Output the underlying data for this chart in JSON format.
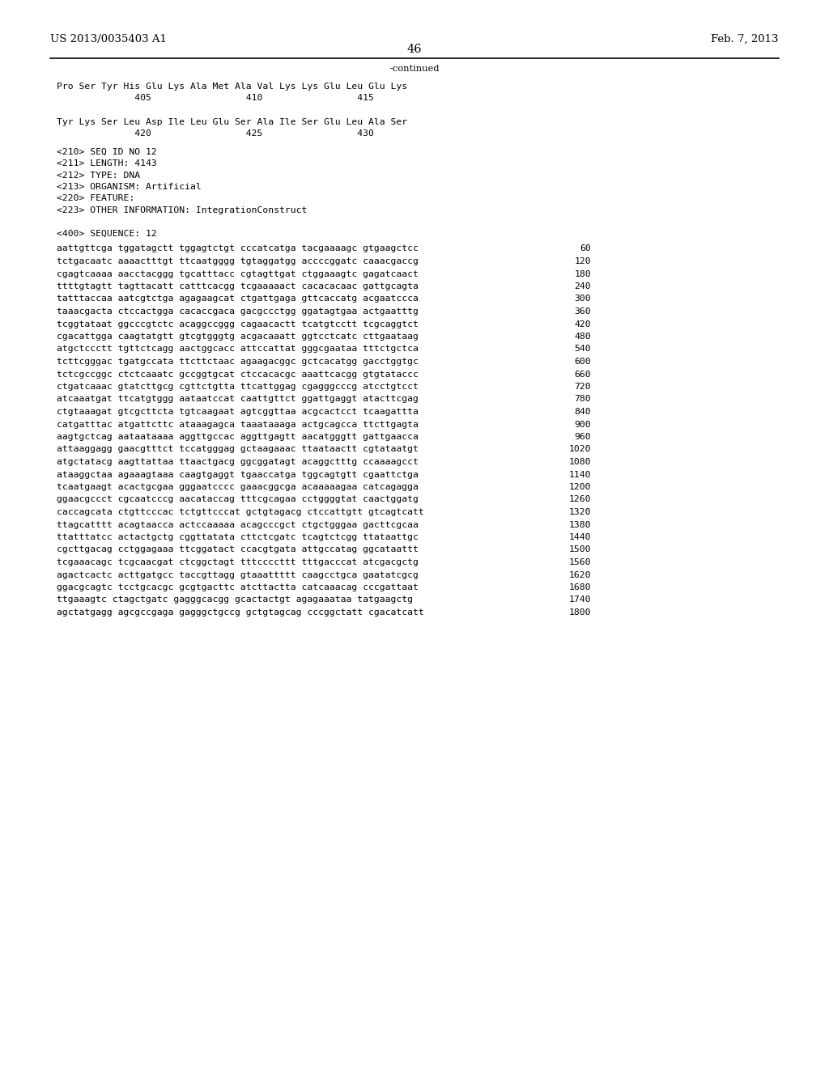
{
  "header_left": "US 2013/0035403 A1",
  "header_right": "Feb. 7, 2013",
  "page_number": "46",
  "continued_text": "-continued",
  "background_color": "#ffffff",
  "text_color": "#000000",
  "font_size_header": 9.5,
  "font_size_body": 8.2,
  "font_size_page": 10.5,
  "protein_lines": [
    "Pro Ser Tyr His Glu Lys Ala Met Ala Val Lys Lys Glu Leu Glu Lys",
    "              405                 410                 415",
    "",
    "Tyr Lys Ser Leu Asp Ile Leu Glu Ser Ala Ile Ser Glu Leu Ala Ser",
    "              420                 425                 430"
  ],
  "meta_lines": [
    "<210> SEQ ID NO 12",
    "<211> LENGTH: 4143",
    "<212> TYPE: DNA",
    "<213> ORGANISM: Artificial",
    "<220> FEATURE:",
    "<223> OTHER INFORMATION: IntegrationConstruct",
    "",
    "<400> SEQUENCE: 12"
  ],
  "sequence_lines": [
    [
      "aattgttcga tggatagctt tggagtctgt cccatcatga tacgaaaagc gtgaagctcc",
      "60"
    ],
    [
      "tctgacaatc aaaactttgt ttcaatgggg tgtaggatgg accccggatc caaacgaccg",
      "120"
    ],
    [
      "cgagtcaaaa aacctacggg tgcatttacc cgtagttgat ctggaaagtc gagatcaact",
      "180"
    ],
    [
      "ttttgtagtt tagttacatt catttcacgg tcgaaaaact cacacacaac gattgcagta",
      "240"
    ],
    [
      "tatttaccaa aatcgtctga agagaagcat ctgattgaga gttcaccatg acgaatccca",
      "300"
    ],
    [
      "taaacgacta ctccactgga cacaccgaca gacgccctgg ggatagtgaa actgaatttg",
      "360"
    ],
    [
      "tcggtataat ggcccgtctc acaggccggg cagaacactt tcatgtcctt tcgcaggtct",
      "420"
    ],
    [
      "cgacattgga caagtatgtt gtcgtgggtg acgacaaatt ggtcctcatc cttgaataag",
      "480"
    ],
    [
      "atgctccctt tgttctcagg aactggcacc attccattat gggcgaataa tttctgctca",
      "540"
    ],
    [
      "tcttcgggac tgatgccata ttcttctaac agaagacggc gctcacatgg gacctggtgc",
      "600"
    ],
    [
      "tctcgccggc ctctcaaatc gccggtgcat ctccacacgc aaattcacgg gtgtataccc",
      "660"
    ],
    [
      "ctgatcaaac gtatcttgcg cgttctgtta ttcattggag cgagggcccg atcctgtcct",
      "720"
    ],
    [
      "atcaaatgat ttcatgtggg aataatccat caattgttct ggattgaggt atacttcgag",
      "780"
    ],
    [
      "ctgtaaagat gtcgcttcta tgtcaagaat agtcggttaa acgcactcct tcaagattta",
      "840"
    ],
    [
      "catgatttac atgattcttc ataaagagca taaataaaga actgcagcca ttcttgagta",
      "900"
    ],
    [
      "aagtgctcag aataataaaa aggttgccac aggttgagtt aacatgggtt gattgaacca",
      "960"
    ],
    [
      "attaaggagg gaacgtttct tccatgggag gctaagaaac ttaataactt cgtataatgt",
      "1020"
    ],
    [
      "atgctatacg aagttattaa ttaactgacg ggcggatagt acaggctttg ccaaaagcct",
      "1080"
    ],
    [
      "ataaggctaa agaaagtaaa caagtgaggt tgaaccatga tggcagtgtt cgaattctga",
      "1140"
    ],
    [
      "tcaatgaagt acactgcgaa gggaatcccc gaaacggcga acaaaaagaa catcagagga",
      "1200"
    ],
    [
      "ggaacgccct cgcaatcccg aacataccag tttcgcagaa cctggggtat caactggatg",
      "1260"
    ],
    [
      "caccagcata ctgttcccac tctgttcccat gctgtagacg ctccattgtt gtcagtcatt",
      "1320"
    ],
    [
      "ttagcatttt acagtaacca actccaaaaa acagcccgct ctgctgggaa gacttcgcaa",
      "1380"
    ],
    [
      "ttatttatcc actactgctg cggttatata cttctcgatc tcagtctcgg ttataattgc",
      "1440"
    ],
    [
      "cgcttgacag cctggagaaa ttcggatact ccacgtgata attgccatag ggcataattt",
      "1500"
    ],
    [
      "tcgaaacagc tcgcaacgat ctcggctagt tttccccttt tttgacccat atcgacgctg",
      "1560"
    ],
    [
      "agactcactc acttgatgcc taccgttagg gtaaattttt caagcctgca gaatatcgcg",
      "1620"
    ],
    [
      "ggacgcagtc tcctgcacgc gcgtgacttc atcttactta catcaaacag cccgattaat",
      "1680"
    ],
    [
      "ttgaaagtc ctagctgatc gagggcacgg gcactactgt agagaaataa tatgaagctg",
      "1740"
    ],
    [
      "agctatgagg agcgccgaga gagggctgccg gctgtagcag cccggctatt cgacatcatt",
      "1800"
    ]
  ]
}
